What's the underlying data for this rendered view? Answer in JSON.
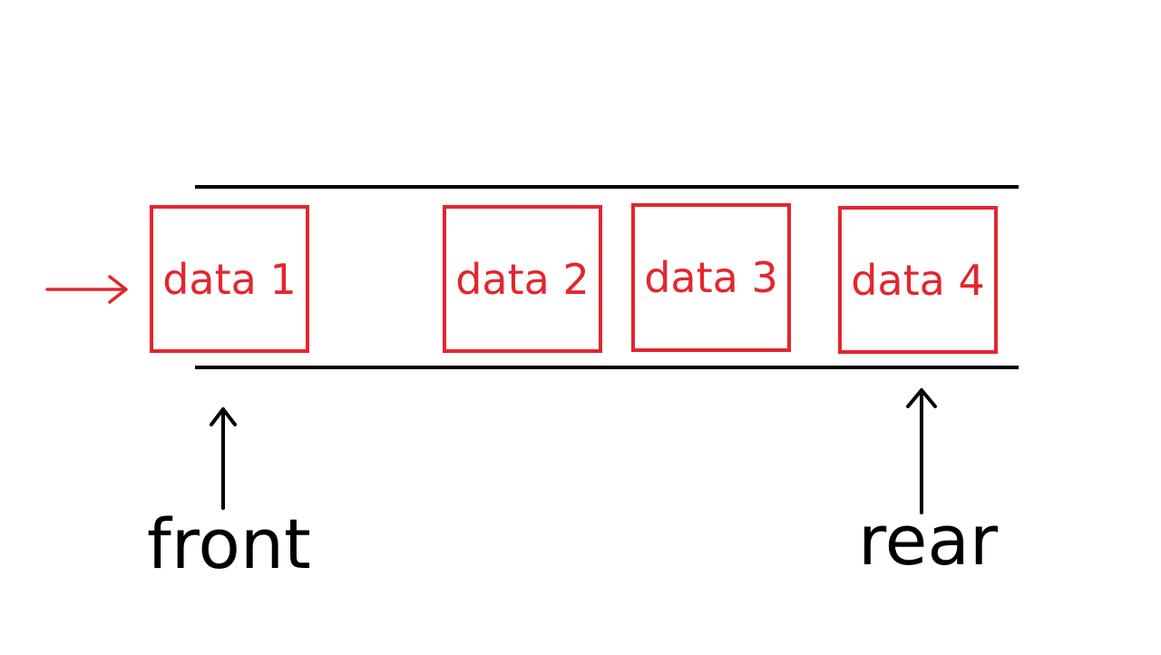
{
  "colors": {
    "accent": "#e3262e",
    "line": "#000000",
    "background": "#ffffff"
  },
  "queue": {
    "cells": [
      {
        "label": "data 1"
      },
      {
        "label": "data 2"
      },
      {
        "label": "data 3"
      },
      {
        "label": "data 4"
      }
    ]
  },
  "pointers": {
    "front": "front",
    "rear": "rear"
  }
}
